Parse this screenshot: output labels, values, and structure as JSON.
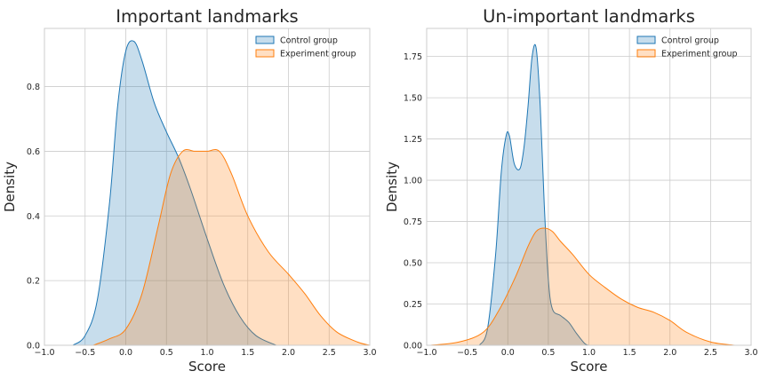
{
  "chart_data": [
    {
      "type": "area",
      "title": "Important landmarks",
      "xlabel": "Score",
      "ylabel": "Density",
      "xlim": [
        -1.0,
        3.0
      ],
      "ylim": [
        0,
        0.98
      ],
      "xticks": [
        "−1.0",
        "−0.5",
        "0.0",
        "0.5",
        "1.0",
        "1.5",
        "2.0",
        "2.5",
        "3.0"
      ],
      "xtick_values": [
        -1.0,
        -0.5,
        0.0,
        0.5,
        1.0,
        1.5,
        2.0,
        2.5,
        3.0
      ],
      "yticks": [
        "0.0",
        "0.2",
        "0.4",
        "0.6",
        "0.8"
      ],
      "ytick_values": [
        0.0,
        0.2,
        0.4,
        0.6,
        0.8
      ],
      "grid": true,
      "legend": "top-right",
      "series": [
        {
          "name": "Control group",
          "color": "#1f77b4",
          "x": [
            -0.65,
            -0.5,
            -0.35,
            -0.2,
            -0.1,
            0.0,
            0.1,
            0.2,
            0.35,
            0.5,
            0.65,
            0.8,
            1.0,
            1.2,
            1.4,
            1.6,
            1.85
          ],
          "y": [
            0.0,
            0.03,
            0.14,
            0.44,
            0.74,
            0.91,
            0.94,
            0.88,
            0.75,
            0.66,
            0.58,
            0.48,
            0.33,
            0.19,
            0.09,
            0.03,
            0.0
          ]
        },
        {
          "name": "Experiment group",
          "color": "#ff7f0e",
          "x": [
            -0.4,
            -0.2,
            0.0,
            0.2,
            0.4,
            0.55,
            0.7,
            0.85,
            1.0,
            1.15,
            1.3,
            1.5,
            1.75,
            2.0,
            2.2,
            2.4,
            2.6,
            2.85,
            3.0
          ],
          "y": [
            0.0,
            0.02,
            0.05,
            0.16,
            0.37,
            0.53,
            0.6,
            0.6,
            0.6,
            0.6,
            0.53,
            0.4,
            0.29,
            0.22,
            0.16,
            0.09,
            0.04,
            0.01,
            0.0
          ]
        }
      ]
    },
    {
      "type": "area",
      "title": "Un-important landmarks",
      "xlabel": "Score",
      "ylabel": "Density",
      "xlim": [
        -1.0,
        3.0
      ],
      "ylim": [
        0,
        1.92
      ],
      "xticks": [
        "−1.0",
        "−0.5",
        "0.0",
        "0.5",
        "1.0",
        "1.5",
        "2.0",
        "2.5",
        "3.0"
      ],
      "xtick_values": [
        -1.0,
        -0.5,
        0.0,
        0.5,
        1.0,
        1.5,
        2.0,
        2.5,
        3.0
      ],
      "yticks": [
        "0.00",
        "0.25",
        "0.50",
        "0.75",
        "1.00",
        "1.25",
        "1.50",
        "1.75"
      ],
      "ytick_values": [
        0.0,
        0.25,
        0.5,
        0.75,
        1.0,
        1.25,
        1.5,
        1.75
      ],
      "grid": true,
      "legend": "top-right",
      "series": [
        {
          "name": "Control group",
          "color": "#1f77b4",
          "x": [
            -0.35,
            -0.25,
            -0.15,
            -0.08,
            -0.02,
            0.02,
            0.08,
            0.15,
            0.2,
            0.25,
            0.3,
            0.35,
            0.4,
            0.45,
            0.5,
            0.55,
            0.65,
            0.75,
            0.85,
            0.95,
            1.0
          ],
          "y": [
            0.0,
            0.1,
            0.55,
            1.05,
            1.27,
            1.27,
            1.1,
            1.07,
            1.2,
            1.45,
            1.75,
            1.8,
            1.45,
            0.85,
            0.4,
            0.22,
            0.18,
            0.14,
            0.07,
            0.01,
            0.0
          ]
        },
        {
          "name": "Experiment group",
          "color": "#ff7f0e",
          "x": [
            -0.95,
            -0.6,
            -0.3,
            -0.1,
            0.1,
            0.25,
            0.35,
            0.45,
            0.55,
            0.65,
            0.8,
            1.0,
            1.2,
            1.4,
            1.6,
            1.8,
            2.0,
            2.2,
            2.5,
            2.8
          ],
          "y": [
            0.0,
            0.02,
            0.08,
            0.22,
            0.42,
            0.6,
            0.69,
            0.71,
            0.69,
            0.63,
            0.55,
            0.43,
            0.35,
            0.28,
            0.23,
            0.2,
            0.15,
            0.08,
            0.02,
            0.0
          ]
        }
      ]
    }
  ]
}
